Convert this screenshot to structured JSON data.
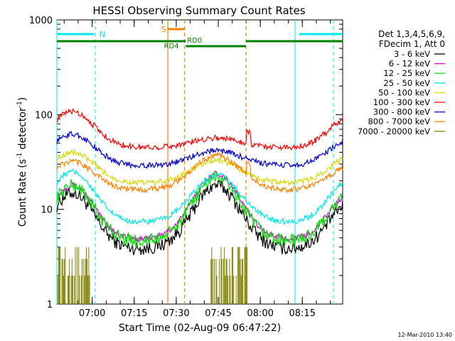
{
  "chart_data": {
    "type": "line",
    "title": "HESSI Observing Summary Count Rates",
    "xlabel": "Start Time (02-Aug-09 06:47:22)",
    "ylabel_prefix": "Count Rate (s",
    "ylabel_sup1": "-1",
    "ylabel_mid": " detector",
    "ylabel_sup2": "-1",
    "ylabel_suffix": ")",
    "yscale": "log",
    "ylim": [
      1,
      1000
    ],
    "xlim_minutes": [
      0,
      102
    ],
    "y_ticks": [
      {
        "value": 1,
        "label": "1"
      },
      {
        "value": 10,
        "label": "10"
      },
      {
        "value": 100,
        "label": "100"
      },
      {
        "value": 1000,
        "label": "1000"
      }
    ],
    "x_ticks": [
      {
        "minute": 12.6,
        "label": "07:00"
      },
      {
        "minute": 27.6,
        "label": "07:15"
      },
      {
        "minute": 42.6,
        "label": "07:30"
      },
      {
        "minute": 57.6,
        "label": "07:45"
      },
      {
        "minute": 72.6,
        "label": "08:00"
      },
      {
        "minute": 87.6,
        "label": "08:15"
      }
    ],
    "legend_header": [
      "Det 1,3,4,5,6,9,",
      "FDecim 1, Att 0"
    ],
    "series": [
      {
        "name": "3 - 6 keV",
        "color": "#000000",
        "base": 15,
        "dip": 3.8,
        "mid": 18
      },
      {
        "name": "6 - 12 keV",
        "color": "#e000e0",
        "base": 18,
        "dip": 4.8,
        "mid": 24
      },
      {
        "name": "12 - 25 keV",
        "color": "#00e000",
        "base": 18,
        "dip": 4.6,
        "mid": 22
      },
      {
        "name": "25 - 50 keV",
        "color": "#00e8e8",
        "base": 25,
        "dip": 7.3,
        "mid": 23
      },
      {
        "name": "50 - 100 keV",
        "color": "#d8d800",
        "base": 40,
        "dip": 19,
        "mid": 33
      },
      {
        "name": "100 - 300 keV",
        "color": "#ff0000",
        "base": 108,
        "dip": 45,
        "mid": 57
      },
      {
        "name": "300 - 800 keV",
        "color": "#0000d0",
        "base": 62,
        "dip": 29,
        "mid": 42
      },
      {
        "name": "800 - 7000 keV",
        "color": "#ff8000",
        "base": 32,
        "dip": 16,
        "mid": 37
      },
      {
        "name": "7000 - 20000 keV",
        "color": "#808000",
        "base": 0,
        "dip": 0,
        "mid": 0
      }
    ],
    "annotations": {
      "N_label": "N",
      "S_label": "S",
      "RD4_label": "RD4",
      "RD0_label": "RD0"
    },
    "colors": {
      "night": "#00e8e8",
      "saa": "#ff8000",
      "decimation": "#008000"
    }
  },
  "footer": {
    "timestamp": "12-Mar-2010 13:40"
  }
}
